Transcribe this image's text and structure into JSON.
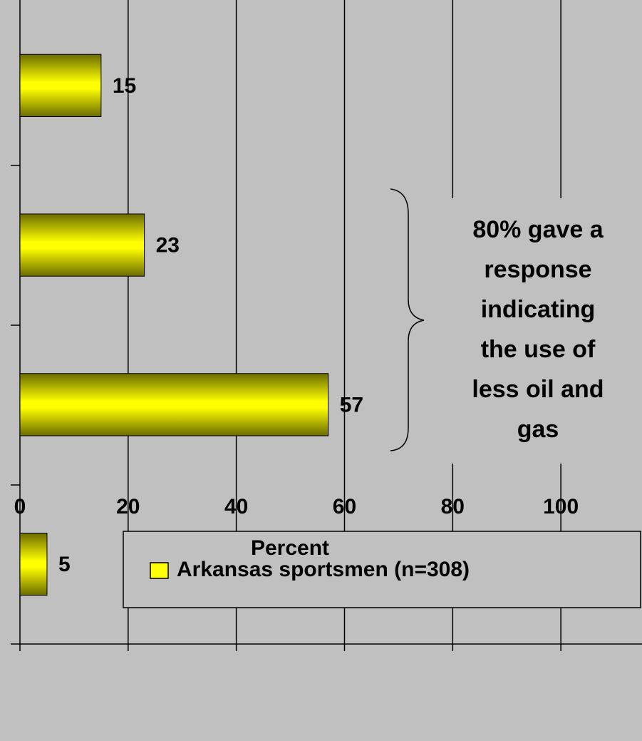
{
  "chart_data": {
    "type": "bar",
    "orientation": "horizontal",
    "categories": [
      null,
      null,
      null,
      null
    ],
    "series": [
      {
        "name": "Arkansas sportsmen (n=308)",
        "color": "#ffff00",
        "values": [
          15,
          23,
          57,
          5
        ]
      }
    ],
    "xlabel": "Percent",
    "xlim": [
      0,
      115
    ],
    "xticks": [
      0,
      20,
      40,
      60,
      80,
      100
    ],
    "grid": true,
    "annotation": [
      "80% gave a",
      "response",
      "indicating",
      "the use of",
      "less oil and",
      "gas"
    ],
    "legend": "bottom-right"
  }
}
